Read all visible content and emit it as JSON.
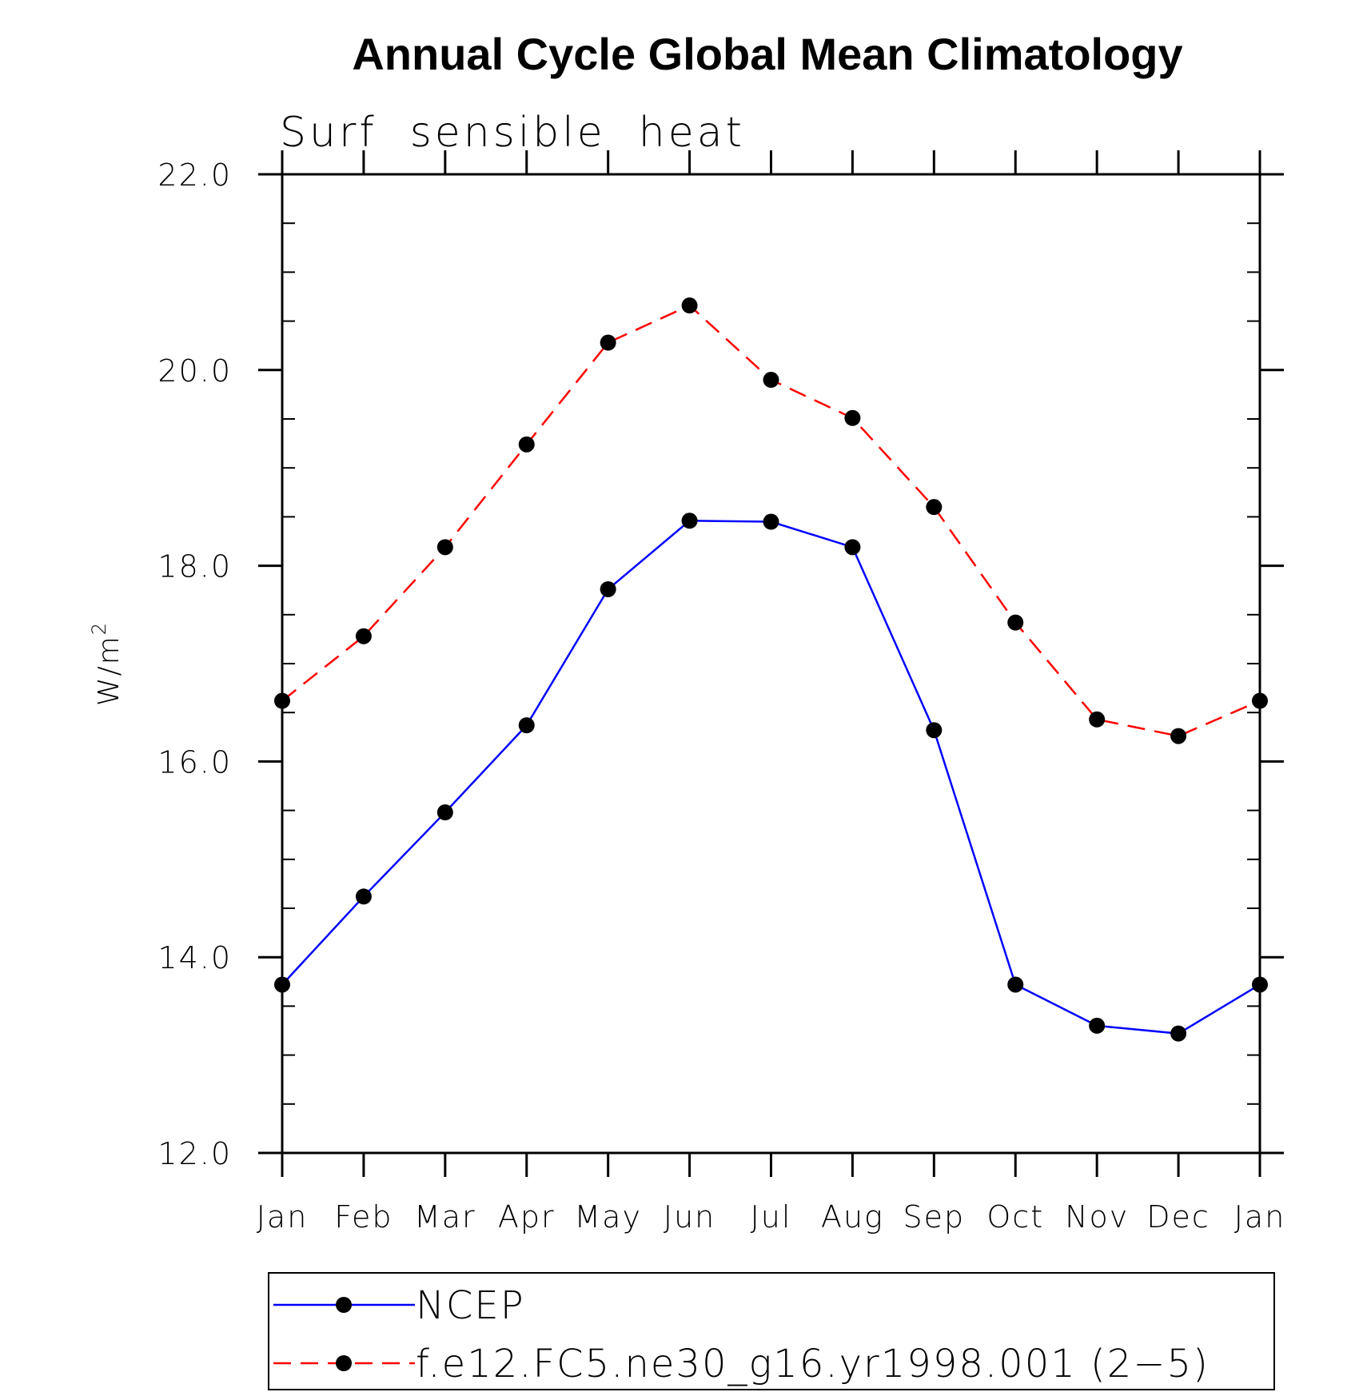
{
  "chart_data": {
    "type": "line",
    "title": "Annual Cycle Global Mean Climatology",
    "subtitle": "Surf  sensible  heat",
    "ylabel": "W/m",
    "ylabel_superscript": "2",
    "categories": [
      "Jan",
      "Feb",
      "Mar",
      "Apr",
      "May",
      "Jun",
      "Jul",
      "Aug",
      "Sep",
      "Oct",
      "Nov",
      "Dec",
      "Jan"
    ],
    "ylim": [
      12.0,
      22.0
    ],
    "yticks": [
      "12.0",
      "14.0",
      "16.0",
      "18.0",
      "20.0",
      "22.0"
    ],
    "ytick_values": [
      12,
      14,
      16,
      18,
      20,
      22
    ],
    "series": [
      {
        "name": "NCEP",
        "color": "#0000ff",
        "style": "solid",
        "values": [
          13.72,
          14.62,
          15.48,
          16.37,
          17.76,
          18.46,
          18.45,
          18.19,
          16.32,
          13.72,
          13.3,
          13.22,
          13.72
        ]
      },
      {
        "name": "f.e12.FC5.ne30_g16.yr1998.001 (2−5)",
        "color": "#ff0000",
        "style": "dashed",
        "values": [
          16.62,
          17.28,
          18.19,
          19.24,
          20.28,
          20.66,
          19.9,
          19.51,
          18.6,
          17.42,
          16.43,
          16.26,
          16.62
        ]
      }
    ],
    "marker_color": "#000000",
    "legend_position": "bottom",
    "grid": false
  }
}
